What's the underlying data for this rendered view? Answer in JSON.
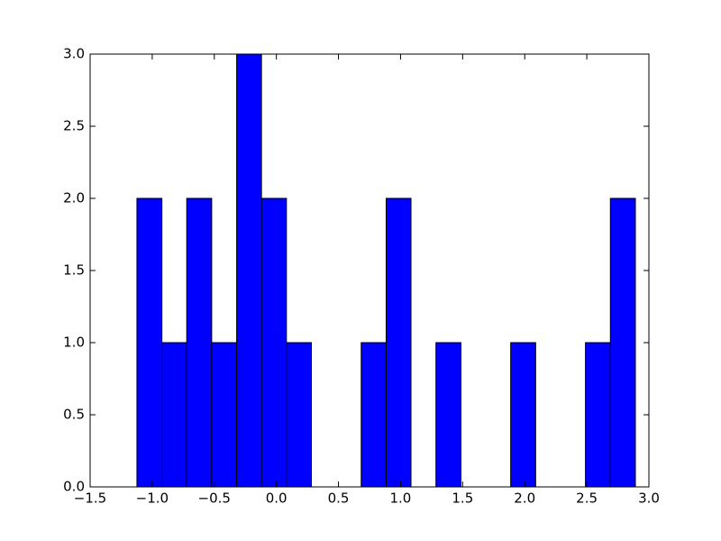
{
  "chart_data": {
    "type": "histogram",
    "bins": [
      -1.123,
      -0.922,
      -0.722,
      -0.521,
      -0.32,
      -0.12,
      0.081,
      0.282,
      0.482,
      0.683,
      0.884,
      1.084,
      1.285,
      1.486,
      1.686,
      1.887,
      2.088,
      2.288,
      2.489,
      2.69,
      2.891
    ],
    "values": [
      2,
      1,
      2,
      1,
      3,
      2,
      1,
      0,
      0,
      1,
      2,
      0,
      1,
      0,
      0,
      1,
      0,
      0,
      1,
      2
    ],
    "color": "#0000ff",
    "xlim": [
      -1.5,
      3.0
    ],
    "xticks": [
      {
        "value": -1.5,
        "label": "−1.5"
      },
      {
        "value": -1.0,
        "label": "−1.0"
      },
      {
        "value": -0.5,
        "label": "−0.5"
      },
      {
        "value": 0,
        "label": "0.0"
      },
      0.5,
      {
        "value": 1,
        "label": "1.0"
      },
      1.5,
      {
        "value": 2,
        "label": "2.0"
      },
      2.5,
      {
        "value": 3,
        "label": "3.0"
      }
    ],
    "ylim": [
      0,
      3.0
    ],
    "yticks": [
      {
        "value": 0,
        "label": "0.0"
      },
      0.5,
      {
        "value": 1,
        "label": "1.0"
      },
      1.5,
      {
        "value": 2,
        "label": "2.0"
      },
      2.5,
      {
        "value": 3,
        "label": "3.0"
      }
    ]
  }
}
